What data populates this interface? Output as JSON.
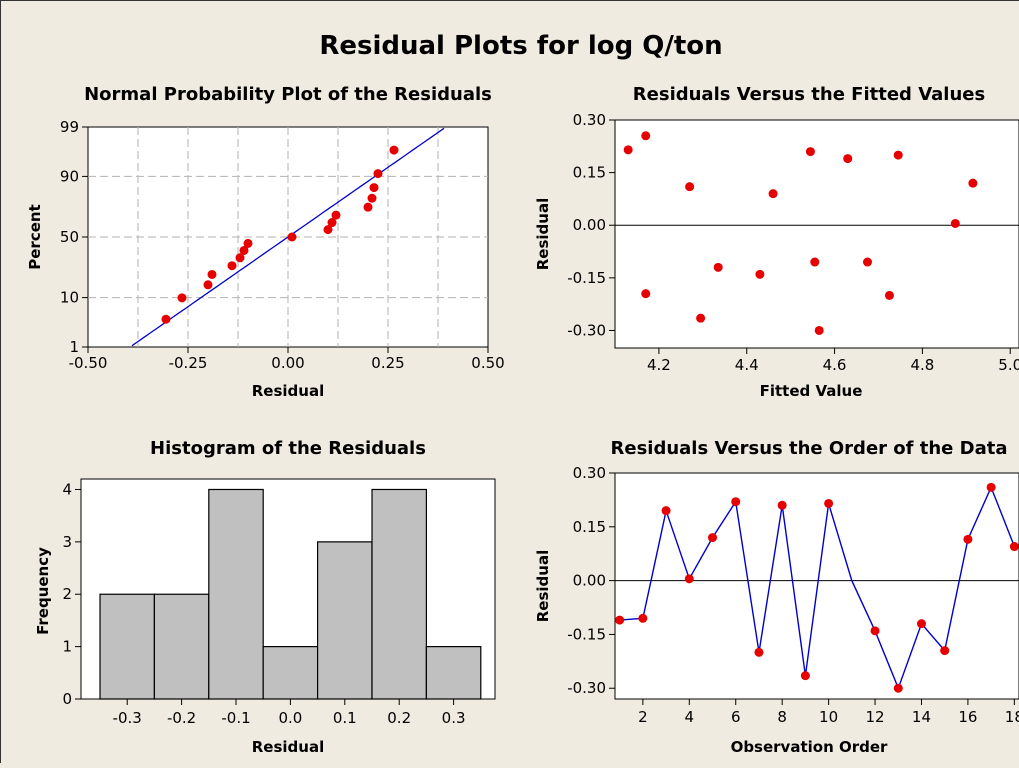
{
  "figure_title": "Residual Plots for log Q/ton",
  "colors": {
    "background": "#efebe0",
    "point": "#e60000",
    "line": "#0000cc",
    "bar": "#c0c0c0",
    "grid": "#b3b3b3"
  },
  "chart_data": [
    {
      "type": "scatter",
      "title": "Normal Probability Plot of the Residuals",
      "xlabel": "Residual",
      "ylabel": "Percent",
      "xlim": [
        -0.5,
        0.5
      ],
      "xticks": [
        "-0.50",
        "-0.25",
        "0.00",
        "0.25",
        "0.50"
      ],
      "yscale": "normal-probability",
      "yticks": [
        "1",
        "10",
        "50",
        "90",
        "99"
      ],
      "grid": true,
      "points": [
        {
          "x": -0.305,
          "y": 4.1
        },
        {
          "x": -0.265,
          "y": 9.9
        },
        {
          "x": -0.2,
          "y": 15.6
        },
        {
          "x": -0.19,
          "y": 21.4
        },
        {
          "x": -0.14,
          "y": 27.2
        },
        {
          "x": -0.12,
          "y": 33.0
        },
        {
          "x": -0.11,
          "y": 38.8
        },
        {
          "x": -0.1,
          "y": 44.6
        },
        {
          "x": 0.01,
          "y": 50.0
        },
        {
          "x": 0.1,
          "y": 56.2
        },
        {
          "x": 0.11,
          "y": 62.0
        },
        {
          "x": 0.12,
          "y": 67.8
        },
        {
          "x": 0.2,
          "y": 73.6
        },
        {
          "x": 0.21,
          "y": 79.4
        },
        {
          "x": 0.215,
          "y": 85.2
        },
        {
          "x": 0.225,
          "y": 91.0
        },
        {
          "x": 0.265,
          "y": 96.7
        }
      ],
      "fit_line": {
        "x": [
          -0.45,
          0.45
        ],
        "y": [
          0.4,
          99.6
        ]
      }
    },
    {
      "type": "scatter",
      "title": "Residuals Versus the Fitted Values",
      "xlabel": "Fitted Value",
      "ylabel": "Residual",
      "xlim": [
        4.1,
        5.02
      ],
      "xticks": [
        "4.2",
        "4.4",
        "4.6",
        "4.8",
        "5.0"
      ],
      "ylim": [
        -0.35,
        0.3
      ],
      "yticks": [
        "0.30",
        "0.15",
        "0.00",
        "-0.15",
        "-0.30"
      ],
      "reference_line": 0,
      "points": [
        {
          "x": 4.13,
          "y": 0.215
        },
        {
          "x": 4.17,
          "y": 0.255
        },
        {
          "x": 4.17,
          "y": -0.195
        },
        {
          "x": 4.27,
          "y": 0.11
        },
        {
          "x": 4.295,
          "y": -0.265
        },
        {
          "x": 4.335,
          "y": -0.12
        },
        {
          "x": 4.43,
          "y": -0.14
        },
        {
          "x": 4.46,
          "y": 0.09
        },
        {
          "x": 4.545,
          "y": 0.21
        },
        {
          "x": 4.555,
          "y": -0.105
        },
        {
          "x": 4.565,
          "y": -0.3
        },
        {
          "x": 4.63,
          "y": 0.19
        },
        {
          "x": 4.675,
          "y": -0.105
        },
        {
          "x": 4.725,
          "y": -0.2
        },
        {
          "x": 4.745,
          "y": 0.2
        },
        {
          "x": 4.875,
          "y": 0.005
        },
        {
          "x": 4.915,
          "y": 0.12
        }
      ]
    },
    {
      "type": "bar",
      "title": "Histogram of the Residuals",
      "xlabel": "Residual",
      "ylabel": "Frequency",
      "categories": [
        "-0.3",
        "-0.2",
        "-0.1",
        "0.0",
        "0.1",
        "0.2",
        "0.3"
      ],
      "values": [
        2,
        2,
        4,
        1,
        3,
        4,
        1
      ],
      "ylim": [
        0,
        4.2
      ],
      "yticks": [
        "0",
        "1",
        "2",
        "3",
        "4"
      ]
    },
    {
      "type": "line",
      "title": "Residuals Versus the Order of the Data",
      "xlabel": "Observation Order",
      "ylabel": "Residual",
      "xlim": [
        0.8,
        18.2
      ],
      "xticks": [
        "2",
        "4",
        "6",
        "8",
        "10",
        "12",
        "14",
        "16",
        "18"
      ],
      "ylim": [
        -0.33,
        0.3
      ],
      "yticks": [
        "0.30",
        "0.15",
        "0.00",
        "-0.15",
        "-0.30"
      ],
      "reference_line": 0,
      "x": [
        1,
        2,
        3,
        4,
        5,
        6,
        7,
        8,
        9,
        10,
        11,
        12,
        13,
        14,
        15,
        16,
        17,
        18
      ],
      "y": [
        -0.11,
        -0.105,
        0.195,
        0.005,
        0.12,
        0.22,
        -0.2,
        0.21,
        -0.265,
        0.215,
        0.0,
        -0.14,
        -0.3,
        -0.12,
        -0.195,
        0.115,
        0.26,
        0.095
      ],
      "hidden_point_indices": [
        10
      ]
    }
  ]
}
